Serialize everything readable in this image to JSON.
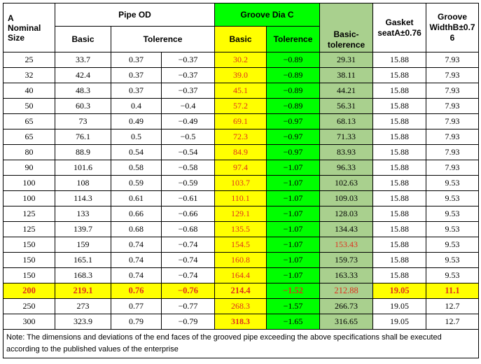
{
  "headers": {
    "a": "A\nNominal\nSize",
    "pipe_od": "Pipe OD",
    "groove_dia": "Groove Dia C",
    "basic_tol": "Basic-\ntolerence",
    "gasket": "Gasket\nseatA±0.76",
    "groove_width": "Groove\nWidthB±0.7\n6",
    "basic": "Basic",
    "tolerence": "Tolerence",
    "groove_basic": "Basic",
    "groove_tolerence": "Tolerence"
  },
  "rows": [
    {
      "size": "25",
      "od_basic": "33.7",
      "od_tol_plus": "0.37",
      "od_tol_minus": "−0.37",
      "c_basic": "30.2",
      "c_tol": "−0.89",
      "basic_tol": "29.31",
      "gasket": "15.88",
      "width": "7.93"
    },
    {
      "size": "32",
      "od_basic": "42.4",
      "od_tol_plus": "0.37",
      "od_tol_minus": "−0.37",
      "c_basic": "39.0",
      "c_tol": "−0.89",
      "basic_tol": "38.11",
      "gasket": "15.88",
      "width": "7.93"
    },
    {
      "size": "40",
      "od_basic": "48.3",
      "od_tol_plus": "0.37",
      "od_tol_minus": "−0.37",
      "c_basic": "45.1",
      "c_tol": "−0.89",
      "basic_tol": "44.21",
      "gasket": "15.88",
      "width": "7.93"
    },
    {
      "size": "50",
      "od_basic": "60.3",
      "od_tol_plus": "0.4",
      "od_tol_minus": "−0.4",
      "c_basic": "57.2",
      "c_tol": "−0.89",
      "basic_tol": "56.31",
      "gasket": "15.88",
      "width": "7.93"
    },
    {
      "size": "65",
      "od_basic": "73",
      "od_tol_plus": "0.49",
      "od_tol_minus": "−0.49",
      "c_basic": "69.1",
      "c_tol": "−0.97",
      "basic_tol": "68.13",
      "gasket": "15.88",
      "width": "7.93"
    },
    {
      "size": "65",
      "od_basic": "76.1",
      "od_tol_plus": "0.5",
      "od_tol_minus": "−0.5",
      "c_basic": "72.3",
      "c_tol": "−0.97",
      "basic_tol": "71.33",
      "gasket": "15.88",
      "width": "7.93"
    },
    {
      "size": "80",
      "od_basic": "88.9",
      "od_tol_plus": "0.54",
      "od_tol_minus": "−0.54",
      "c_basic": "84.9",
      "c_tol": "−0.97",
      "basic_tol": "83.93",
      "gasket": "15.88",
      "width": "7.93"
    },
    {
      "size": "90",
      "od_basic": "101.6",
      "od_tol_plus": "0.58",
      "od_tol_minus": "−0.58",
      "c_basic": "97.4",
      "c_tol": "−1.07",
      "basic_tol": "96.33",
      "gasket": "15.88",
      "width": "7.93"
    },
    {
      "size": "100",
      "od_basic": "108",
      "od_tol_plus": "0.59",
      "od_tol_minus": "−0.59",
      "c_basic": "103.7",
      "c_tol": "−1.07",
      "basic_tol": "102.63",
      "gasket": "15.88",
      "width": "9.53"
    },
    {
      "size": "100",
      "od_basic": "114.3",
      "od_tol_plus": "0.61",
      "od_tol_minus": "−0.61",
      "c_basic": "110.1",
      "c_tol": "−1.07",
      "basic_tol": "109.03",
      "gasket": "15.88",
      "width": "9.53"
    },
    {
      "size": "125",
      "od_basic": "133",
      "od_tol_plus": "0.66",
      "od_tol_minus": "−0.66",
      "c_basic": "129.1",
      "c_tol": "−1.07",
      "basic_tol": "128.03",
      "gasket": "15.88",
      "width": "9.53"
    },
    {
      "size": "125",
      "od_basic": "139.7",
      "od_tol_plus": "0.68",
      "od_tol_minus": "−0.68",
      "c_basic": "135.5",
      "c_tol": "−1.07",
      "basic_tol": "134.43",
      "gasket": "15.88",
      "width": "9.53"
    },
    {
      "size": "150",
      "od_basic": "159",
      "od_tol_plus": "0.74",
      "od_tol_minus": "−0.74",
      "c_basic": "154.5",
      "c_tol": "−1.07",
      "basic_tol": "153.43",
      "gasket": "15.88",
      "width": "9.53",
      "basic_tol_red": true
    },
    {
      "size": "150",
      "od_basic": "165.1",
      "od_tol_plus": "0.74",
      "od_tol_minus": "−0.74",
      "c_basic": "160.8",
      "c_tol": "−1.07",
      "basic_tol": "159.73",
      "gasket": "15.88",
      "width": "9.53"
    },
    {
      "size": "150",
      "od_basic": "168.3",
      "od_tol_plus": "0.74",
      "od_tol_minus": "−0.74",
      "c_basic": "164.4",
      "c_tol": "−1.07",
      "basic_tol": "163.33",
      "gasket": "15.88",
      "width": "9.53"
    },
    {
      "size": "200",
      "od_basic": "219.1",
      "od_tol_plus": "0.76",
      "od_tol_minus": "−0.76",
      "c_basic": "214.4",
      "c_tol": "−1.52",
      "basic_tol": "212.88",
      "gasket": "19.05",
      "width": "11.1",
      "highlight": true
    },
    {
      "size": "250",
      "od_basic": "273",
      "od_tol_plus": "0.77",
      "od_tol_minus": "−0.77",
      "c_basic": "268.3",
      "c_tol": "−1.57",
      "basic_tol": "266.73",
      "gasket": "19.05",
      "width": "12.7"
    },
    {
      "size": "300",
      "od_basic": "323.9",
      "od_tol_plus": "0.79",
      "od_tol_minus": "−0.79",
      "c_basic": "318.3",
      "c_tol": "−1.65",
      "basic_tol": "316.65",
      "gasket": "19.05",
      "width": "12.7",
      "c_basic_bold": true
    }
  ],
  "note": "Note: The dimensions and deviations of the end faces of the grooved pipe exceeding the above specifications shall be executed according to the published values of the enterprise",
  "colors": {
    "green": "#00ff00",
    "yellow": "#ffff00",
    "sage": "#a9d08e",
    "red": "#e0301e"
  }
}
